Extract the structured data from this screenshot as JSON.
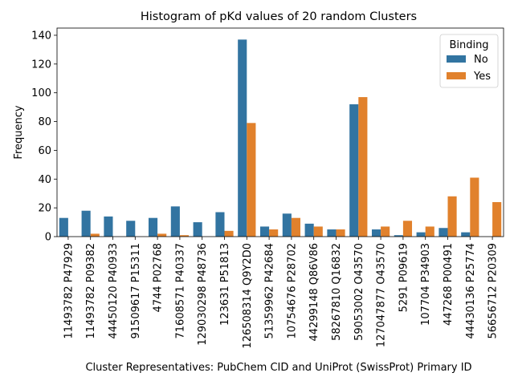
{
  "chart_data": {
    "type": "bar",
    "title": "Histogram of pKd values of 20 random Clusters",
    "xlabel": "Cluster Representatives: PubChem CID and UniProt (SwissProt) Primary ID",
    "ylabel": "Frequency",
    "ylim": [
      0,
      145
    ],
    "yticks": [
      0,
      20,
      40,
      60,
      80,
      100,
      120,
      140
    ],
    "grid": false,
    "legend": {
      "title": "Binding",
      "placement": "top-right"
    },
    "categories": [
      "11493782 P47929",
      "11493782 P09382",
      "44450120 P40933",
      "91509617 P15311",
      "4744 P02768",
      "71608571 P40337",
      "129030298 P48736",
      "123631 P51813",
      "126508314 Q9Y2D0",
      "51359962 P42684",
      "10754676 P28702",
      "44299148 Q86V86",
      "58267810 Q16832",
      "59053002 O43570",
      "127047877 O43570",
      "5291 P09619",
      "107704 P34903",
      "447268 P00491",
      "44430136 P25774",
      "56656712 P20309"
    ],
    "series": [
      {
        "name": "No",
        "color": "#3274a1",
        "values": [
          13,
          18,
          14,
          11,
          13,
          21,
          10,
          17,
          137,
          7,
          16,
          9,
          5,
          92,
          5,
          1,
          3,
          6,
          3,
          0
        ]
      },
      {
        "name": "Yes",
        "color": "#e1812c",
        "values": [
          0,
          2,
          0,
          0,
          2,
          1,
          0,
          4,
          79,
          5,
          13,
          7,
          5,
          97,
          7,
          11,
          7,
          28,
          41,
          24
        ]
      }
    ]
  }
}
